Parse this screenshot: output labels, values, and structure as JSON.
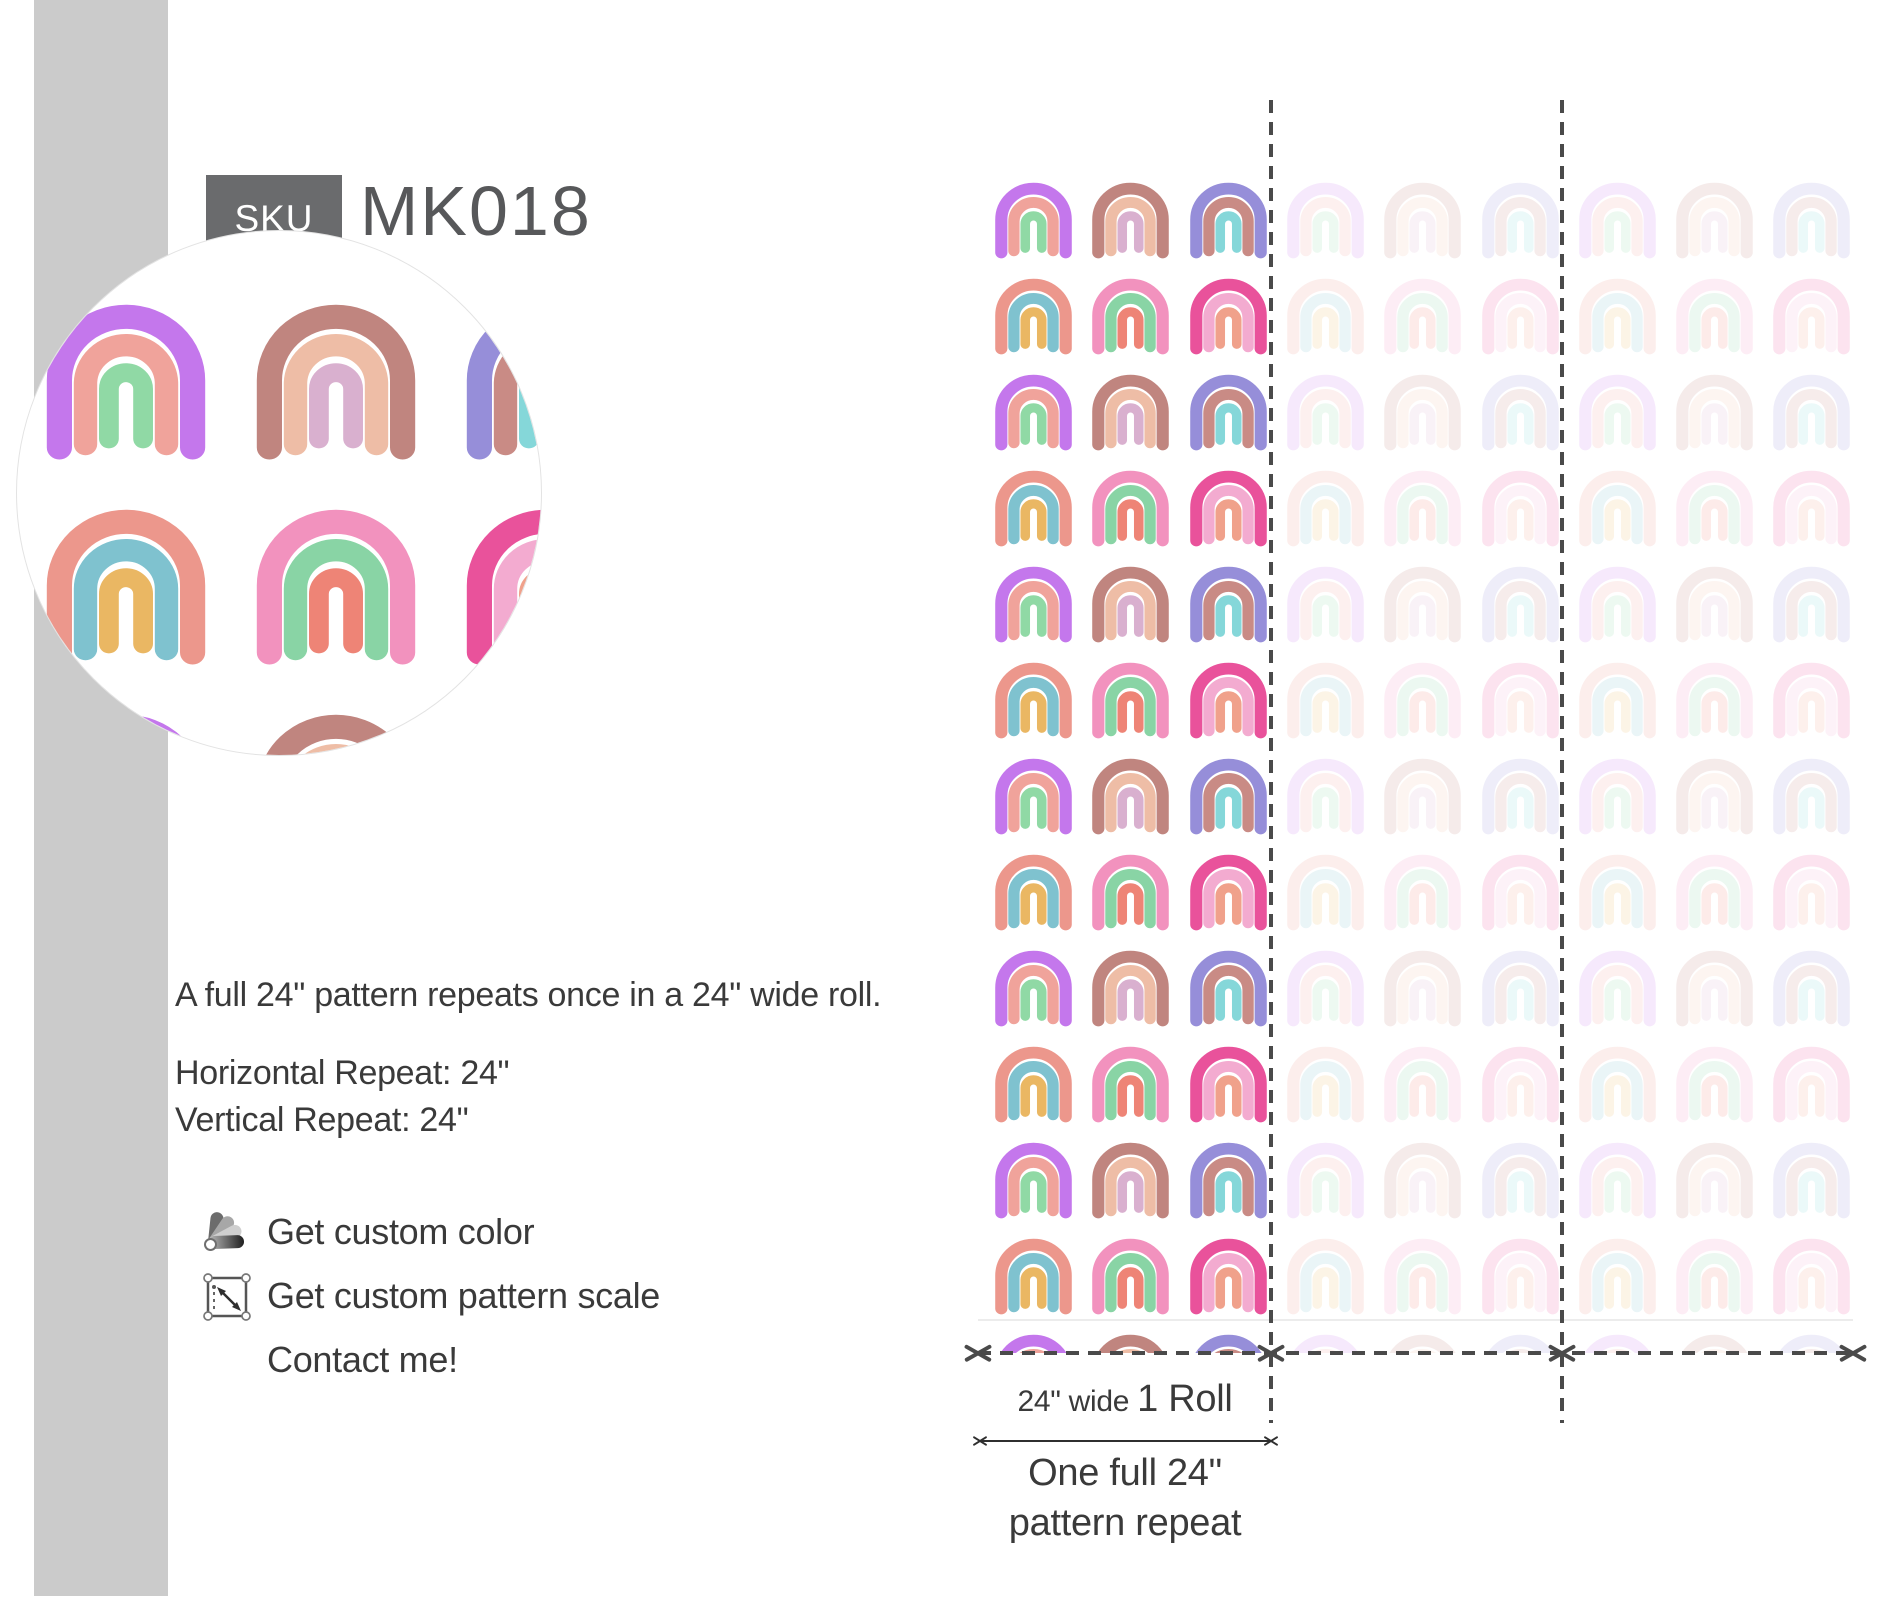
{
  "sku": {
    "label": "SKU",
    "value": "MK018"
  },
  "description": {
    "line1": "A full 24\" pattern repeats once in a 24\" wide roll.",
    "h_repeat": "Horizontal Repeat: 24\"",
    "v_repeat": "Vertical Repeat: 24\""
  },
  "options": [
    {
      "icon": "color-swatches-icon",
      "label": "Get custom color"
    },
    {
      "icon": "scale-icon",
      "label": "Get custom pattern scale"
    },
    {
      "icon": "none",
      "label": "Contact me!"
    }
  ],
  "dimensions": {
    "roll_width_small": "24\" wide",
    "roll_width_big": "1 Roll",
    "repeat_line1": "One full 24\"",
    "repeat_line2": "pattern repeat"
  },
  "pattern": {
    "motif": "watercolor-rainbow",
    "row_sequence": [
      "A",
      "B"
    ],
    "types": {
      "A": [
        [
          "#c477ec",
          "#f0a39b",
          "#90d9a5"
        ],
        [
          "#c0857f",
          "#eebda6",
          "#d9b0cf"
        ],
        [
          "#968ed9",
          "#c98b85",
          "#85d7d9"
        ]
      ],
      "B": [
        [
          "#ec978c",
          "#7fc2cf",
          "#eab763"
        ],
        [
          "#f292be",
          "#89d4a5",
          "#ee8476"
        ],
        [
          "#e9529b",
          "#f3abd0",
          "#f0a18b"
        ]
      ]
    },
    "faded_opacity": 0.84
  },
  "colors": {
    "sidebar_bar": "#cbcbcb",
    "sku_box": "#6a6b6d",
    "sku_text": "#ffffff",
    "title_text": "#57585a",
    "body_text": "#3a3a3a",
    "dash_line": "#4a4a4a",
    "dimension_line": "#2f2f2f",
    "circle_border": "#e3e3e3",
    "tile_line": "#ececec"
  }
}
